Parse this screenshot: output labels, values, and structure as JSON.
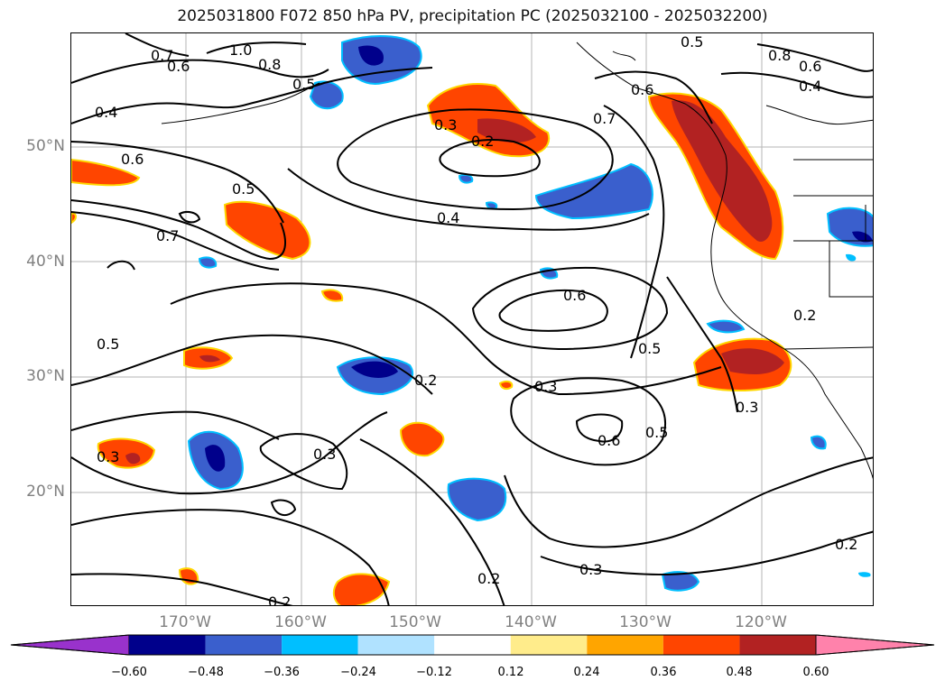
{
  "title": "2025031800 F072 850 hPa PV, precipitation PC (2025032100 - 2025032200)",
  "map": {
    "lon_labels": [
      "170°W",
      "160°W",
      "150°W",
      "140°W",
      "130°W",
      "120°W"
    ],
    "lat_labels": [
      "50°N",
      "40°N",
      "30°N",
      "20°N"
    ],
    "contour_labels": [
      "0.7",
      "0.6",
      "1.0",
      "0.8",
      "0.5",
      "0.4",
      "0.3",
      "0.2",
      "0.6",
      "0.5",
      "0.7",
      "0.4",
      "0.5",
      "0.6",
      "0.2",
      "0.5",
      "0.3",
      "0.3",
      "0.6",
      "0.5",
      "0.3",
      "0.2",
      "0.3",
      "0.2",
      "0.8",
      "0.6",
      "0.4",
      "0.7",
      "0.6",
      "0.2",
      "0.3",
      "0.2",
      "0.5"
    ]
  },
  "colorbar": {
    "ticks": [
      "−0.60",
      "−0.48",
      "−0.36",
      "−0.24",
      "−0.12",
      "0.12",
      "0.24",
      "0.36",
      "0.48",
      "0.60"
    ],
    "colors": [
      "#9932cc",
      "#00008b",
      "#3a5fcd",
      "#00bfff",
      "#b0e2ff",
      "#ffffff",
      "#ffec8b",
      "#ffa500",
      "#ff4500",
      "#b22222",
      "#ff82ab"
    ]
  }
}
